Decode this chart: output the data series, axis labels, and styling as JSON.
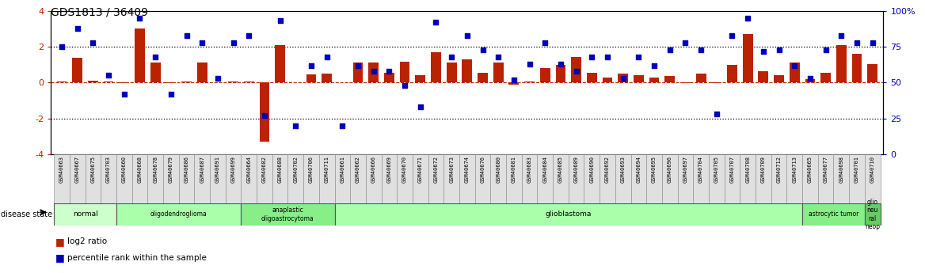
{
  "title": "GDS1813 / 36409",
  "samples": [
    "GSM40663",
    "GSM40667",
    "GSM40675",
    "GSM40703",
    "GSM40660",
    "GSM40668",
    "GSM40678",
    "GSM40679",
    "GSM40686",
    "GSM40687",
    "GSM40691",
    "GSM40699",
    "GSM40664",
    "GSM40682",
    "GSM40688",
    "GSM40702",
    "GSM40706",
    "GSM40711",
    "GSM40661",
    "GSM40662",
    "GSM40666",
    "GSM40669",
    "GSM40670",
    "GSM40671",
    "GSM40672",
    "GSM40673",
    "GSM40674",
    "GSM40676",
    "GSM40680",
    "GSM40681",
    "GSM40683",
    "GSM40684",
    "GSM40685",
    "GSM40689",
    "GSM40690",
    "GSM40692",
    "GSM40693",
    "GSM40694",
    "GSM40695",
    "GSM40696",
    "GSM40697",
    "GSM40704",
    "GSM40705",
    "GSM40707",
    "GSM40708",
    "GSM40709",
    "GSM40712",
    "GSM40713",
    "GSM40665",
    "GSM40677",
    "GSM40698",
    "GSM40701",
    "GSM40710"
  ],
  "log2_ratio": [
    0.05,
    1.4,
    0.1,
    0.05,
    -0.05,
    3.0,
    1.1,
    -0.05,
    0.05,
    1.1,
    0.0,
    0.05,
    0.05,
    -3.3,
    2.1,
    0.0,
    0.45,
    0.5,
    0.0,
    1.1,
    1.1,
    0.55,
    1.15,
    0.4,
    1.7,
    1.1,
    1.3,
    0.55,
    1.1,
    -0.1,
    0.05,
    0.8,
    1.0,
    1.45,
    0.55,
    0.3,
    0.5,
    0.4,
    0.3,
    0.35,
    -0.05,
    0.5,
    -0.05,
    1.0,
    2.7,
    0.65,
    0.4,
    1.1,
    0.2,
    0.55,
    2.1,
    1.6,
    1.05
  ],
  "percentile": [
    75,
    88,
    78,
    55,
    42,
    95,
    68,
    42,
    83,
    78,
    53,
    78,
    83,
    27,
    93,
    20,
    62,
    68,
    20,
    62,
    58,
    58,
    48,
    33,
    92,
    68,
    83,
    73,
    68,
    52,
    63,
    78,
    63,
    58,
    68,
    68,
    53,
    68,
    62,
    73,
    78,
    73,
    28,
    83,
    95,
    72,
    73,
    62,
    53,
    73,
    83,
    78,
    78
  ],
  "disease_groups": [
    {
      "label": "normal",
      "start": 0,
      "end": 4,
      "color": "#ccffcc"
    },
    {
      "label": "oligodendroglioma",
      "start": 4,
      "end": 12,
      "color": "#aaffaa"
    },
    {
      "label": "anaplastic\noligoastrocytoma",
      "start": 12,
      "end": 18,
      "color": "#88ee88"
    },
    {
      "label": "glioblastoma",
      "start": 18,
      "end": 48,
      "color": "#aaffaa"
    },
    {
      "label": "astrocytic tumor",
      "start": 48,
      "end": 52,
      "color": "#88ee88"
    },
    {
      "label": "glio\nneu\nral\nneop",
      "start": 52,
      "end": 53,
      "color": "#66cc66"
    }
  ],
  "bar_color": "#bb2200",
  "dot_color": "#0000bb",
  "ylim_left": [
    -4,
    4
  ],
  "ylim_right": [
    0,
    100
  ],
  "yticks_left": [
    -4,
    -2,
    0,
    2,
    4
  ],
  "yticks_right": [
    0,
    25,
    50,
    75,
    100
  ],
  "background_color": "#ffffff"
}
